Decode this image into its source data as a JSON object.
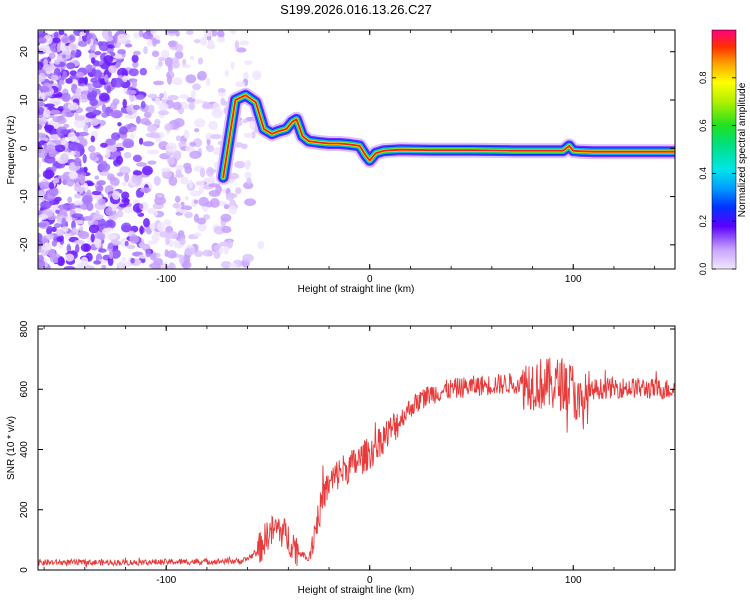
{
  "chart_data": [
    {
      "type": "heatmap",
      "title": "S199.2026.016.13.26.C27",
      "xlabel": "Height of straight line (km)",
      "ylabel": "Frequency (Hz)",
      "xlim": [
        -163,
        150
      ],
      "ylim": [
        -25,
        24.5
      ],
      "xticks": [
        -100,
        0,
        100
      ],
      "yticks": [
        -20,
        -10,
        0,
        10,
        20
      ],
      "colorbar": {
        "label": "Normalized spectral amplitude",
        "range": [
          0,
          1
        ],
        "ticks": [
          "0.0",
          "0.2",
          "0.4",
          "0.6",
          "0.8"
        ]
      },
      "ridge": {
        "x": [
          -72,
          -66,
          -61,
          -56,
          -52,
          -48,
          -45,
          -41,
          -38,
          -36,
          -33,
          -30,
          -25,
          -20,
          -15,
          -10,
          -5,
          -2,
          0,
          3,
          7,
          15,
          30,
          50,
          70,
          85,
          95,
          98,
          100,
          103,
          110,
          130,
          150
        ],
        "y": [
          -6,
          10,
          11,
          9.5,
          4,
          3,
          3.5,
          4,
          5.5,
          6,
          2.5,
          1.5,
          1.2,
          1,
          1,
          0.8,
          0.5,
          -1.5,
          -2.5,
          -1,
          -0.5,
          -0.3,
          -0.4,
          -0.4,
          -0.5,
          -0.5,
          -0.5,
          0.5,
          -0.5,
          -0.6,
          -0.7,
          -0.7,
          -0.7
        ]
      }
    },
    {
      "type": "line",
      "title": "",
      "xlabel": "Height of straight line (km)",
      "ylabel": "SNR (10 * v/v)",
      "xlim": [
        -163,
        150
      ],
      "ylim": [
        0,
        810
      ],
      "xticks": [
        -100,
        0,
        100
      ],
      "yticks": [
        0,
        200,
        400,
        600,
        800
      ],
      "series": [
        {
          "name": "SNR",
          "color": "#e83a3a",
          "x": [
            -163,
            -120,
            -80,
            -62,
            -55,
            -50,
            -45,
            -42,
            -38,
            -35,
            -30,
            -26,
            -22,
            -18,
            -14,
            -10,
            -6,
            -2,
            2,
            5,
            10,
            15,
            20,
            25,
            30,
            40,
            50,
            60,
            70,
            80,
            90,
            95,
            100,
            103,
            110,
            120,
            130,
            140,
            150
          ],
          "values": [
            25,
            25,
            28,
            30,
            60,
            120,
            140,
            120,
            90,
            60,
            40,
            160,
            260,
            300,
            330,
            340,
            360,
            380,
            400,
            430,
            460,
            500,
            540,
            565,
            585,
            600,
            610,
            615,
            620,
            620,
            615,
            620,
            600,
            540,
            600,
            605,
            605,
            600,
            600
          ]
        }
      ],
      "grid": false
    }
  ]
}
